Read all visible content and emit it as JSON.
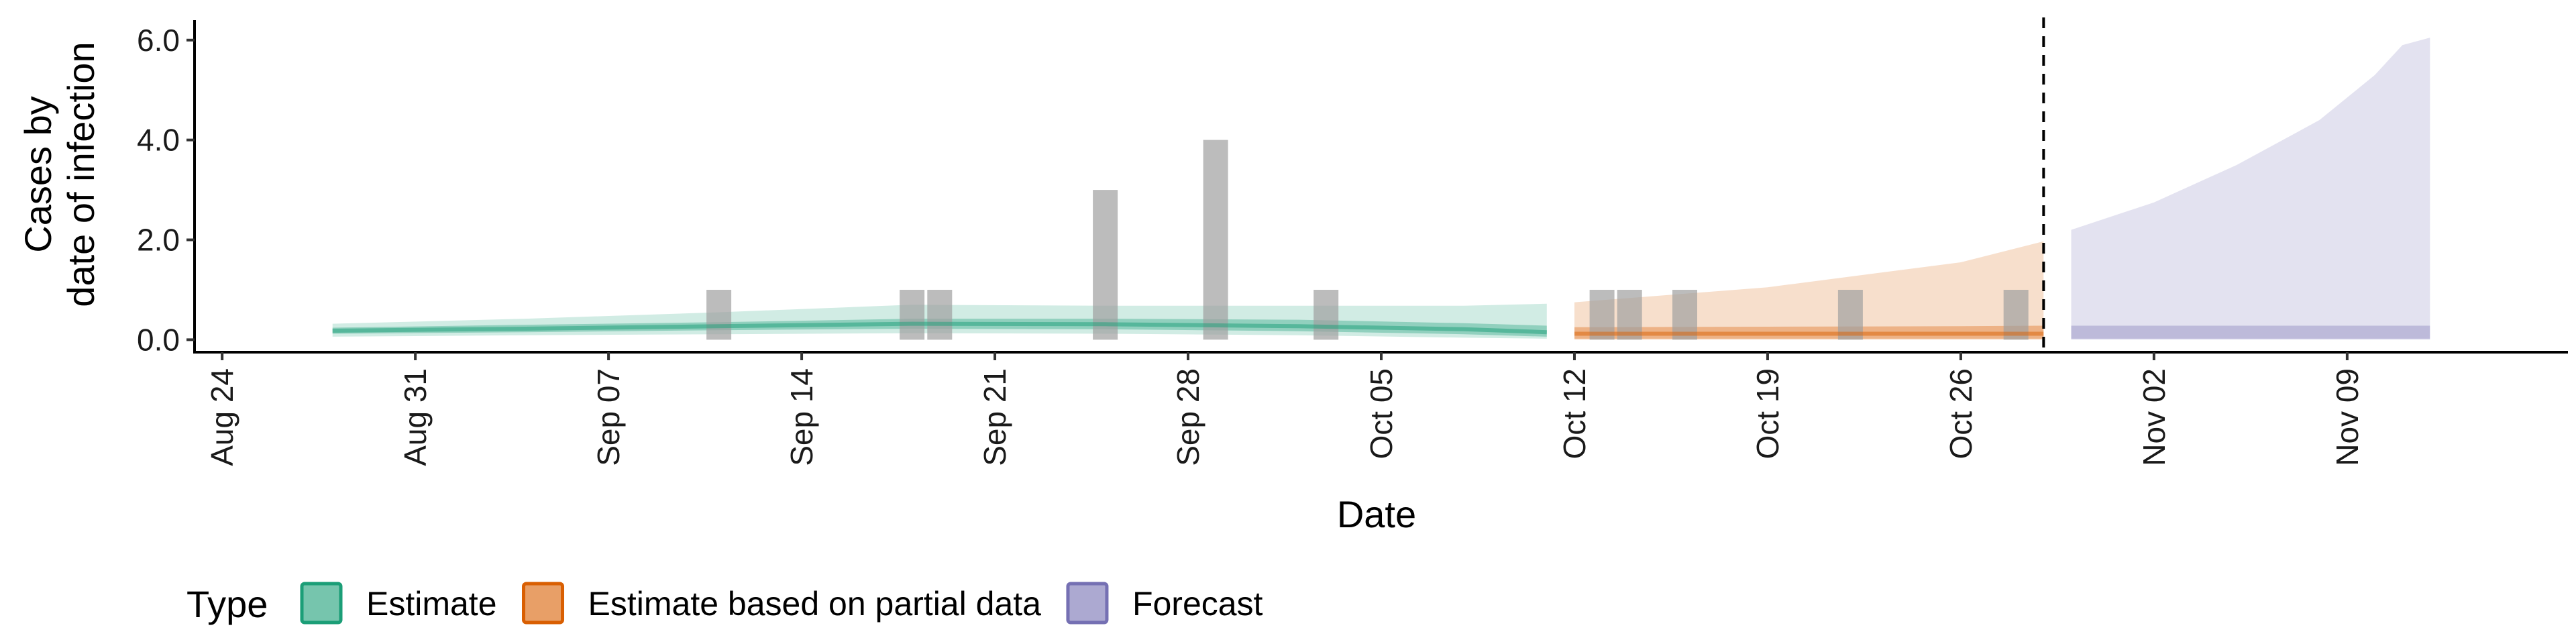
{
  "chart_data": {
    "type": "area",
    "xlabel": "Date",
    "ylabel_lines": [
      "Cases by",
      "date of infection"
    ],
    "ylim": [
      -0.25,
      6.4
    ],
    "y_ticks": [
      {
        "value": 0.0,
        "label": "0.0"
      },
      {
        "value": 2.0,
        "label": "2.0"
      },
      {
        "value": 4.0,
        "label": "4.0"
      },
      {
        "value": 6.0,
        "label": "6.0"
      }
    ],
    "x_range": [
      "2020-08-23",
      "2020-11-17"
    ],
    "x_ticks": [
      {
        "date": "2020-08-24",
        "label": "Aug 24"
      },
      {
        "date": "2020-08-31",
        "label": "Aug 31"
      },
      {
        "date": "2020-09-07",
        "label": "Sep 07"
      },
      {
        "date": "2020-09-14",
        "label": "Sep 14"
      },
      {
        "date": "2020-09-21",
        "label": "Sep 21"
      },
      {
        "date": "2020-09-28",
        "label": "Sep 28"
      },
      {
        "date": "2020-10-05",
        "label": "Oct 05"
      },
      {
        "date": "2020-10-12",
        "label": "Oct 12"
      },
      {
        "date": "2020-10-19",
        "label": "Oct 19"
      },
      {
        "date": "2020-10-26",
        "label": "Oct 26"
      },
      {
        "date": "2020-11-02",
        "label": "Nov 02"
      },
      {
        "date": "2020-11-09",
        "label": "Nov 09"
      }
    ],
    "vline_date": "2020-10-29",
    "grid": false,
    "legend_title": "Type",
    "legend_position": "bottom",
    "colors": {
      "estimate": "#1b9e77",
      "partial": "#d95f02",
      "forecast": "#7570b3",
      "bars": "#a0a0a0",
      "vline": "#000000"
    },
    "observed_cases": [
      {
        "date": "2020-09-11",
        "value": 1
      },
      {
        "date": "2020-09-18",
        "value": 1
      },
      {
        "date": "2020-09-19",
        "value": 1
      },
      {
        "date": "2020-09-25",
        "value": 3
      },
      {
        "date": "2020-09-29",
        "value": 4
      },
      {
        "date": "2020-10-03",
        "value": 1
      },
      {
        "date": "2020-10-13",
        "value": 1
      },
      {
        "date": "2020-10-14",
        "value": 1
      },
      {
        "date": "2020-10-16",
        "value": 1
      },
      {
        "date": "2020-10-22",
        "value": 1
      },
      {
        "date": "2020-10-28",
        "value": 1
      }
    ],
    "series": [
      {
        "name": "Estimate",
        "color_key": "estimate",
        "points": [
          {
            "date": "2020-08-28",
            "outer_low": 0.06,
            "outer_high": 0.32,
            "inner_low": 0.12,
            "inner_high": 0.24,
            "median": 0.18
          },
          {
            "date": "2020-09-04",
            "outer_low": 0.09,
            "outer_high": 0.42,
            "inner_low": 0.15,
            "inner_high": 0.3,
            "median": 0.22
          },
          {
            "date": "2020-09-11",
            "outer_low": 0.11,
            "outer_high": 0.55,
            "inner_low": 0.19,
            "inner_high": 0.35,
            "median": 0.27
          },
          {
            "date": "2020-09-18",
            "outer_low": 0.13,
            "outer_high": 0.7,
            "inner_low": 0.22,
            "inner_high": 0.42,
            "median": 0.32
          },
          {
            "date": "2020-09-25",
            "outer_low": 0.12,
            "outer_high": 0.68,
            "inner_low": 0.21,
            "inner_high": 0.42,
            "median": 0.31
          },
          {
            "date": "2020-10-02",
            "outer_low": 0.09,
            "outer_high": 0.68,
            "inner_low": 0.17,
            "inner_high": 0.4,
            "median": 0.27
          },
          {
            "date": "2020-10-08",
            "outer_low": 0.04,
            "outer_high": 0.68,
            "inner_low": 0.11,
            "inner_high": 0.33,
            "median": 0.21
          },
          {
            "date": "2020-10-11",
            "outer_low": 0.02,
            "outer_high": 0.72,
            "inner_low": 0.06,
            "inner_high": 0.28,
            "median": 0.15
          }
        ]
      },
      {
        "name": "Estimate based on partial data",
        "color_key": "partial",
        "points": [
          {
            "date": "2020-10-12",
            "outer_low": 0.0,
            "outer_high": 0.75,
            "inner_low": 0.02,
            "inner_high": 0.25,
            "median": 0.12
          },
          {
            "date": "2020-10-19",
            "outer_low": 0.0,
            "outer_high": 1.05,
            "inner_low": 0.02,
            "inner_high": 0.26,
            "median": 0.12
          },
          {
            "date": "2020-10-26",
            "outer_low": 0.0,
            "outer_high": 1.55,
            "inner_low": 0.02,
            "inner_high": 0.27,
            "median": 0.12
          },
          {
            "date": "2020-10-29",
            "outer_low": 0.0,
            "outer_high": 1.97,
            "inner_low": 0.02,
            "inner_high": 0.28,
            "median": 0.12
          }
        ]
      },
      {
        "name": "Forecast",
        "color_key": "forecast",
        "points": [
          {
            "date": "2020-10-30",
            "outer_low": 0.0,
            "outer_high": 2.2,
            "inner_low": 0.02,
            "inner_high": 0.28
          },
          {
            "date": "2020-11-02",
            "outer_low": 0.0,
            "outer_high": 2.75,
            "inner_low": 0.02,
            "inner_high": 0.28
          },
          {
            "date": "2020-11-05",
            "outer_low": 0.0,
            "outer_high": 3.5,
            "inner_low": 0.02,
            "inner_high": 0.28
          },
          {
            "date": "2020-11-08",
            "outer_low": 0.0,
            "outer_high": 4.4,
            "inner_low": 0.02,
            "inner_high": 0.28
          },
          {
            "date": "2020-11-10",
            "outer_low": 0.0,
            "outer_high": 5.3,
            "inner_low": 0.02,
            "inner_high": 0.28
          },
          {
            "date": "2020-11-11",
            "outer_low": 0.0,
            "outer_high": 5.9,
            "inner_low": 0.02,
            "inner_high": 0.28
          },
          {
            "date": "2020-11-12",
            "outer_low": 0.0,
            "outer_high": 6.05,
            "inner_low": 0.02,
            "inner_high": 0.28
          }
        ]
      }
    ]
  }
}
